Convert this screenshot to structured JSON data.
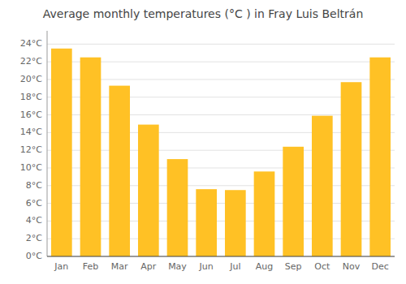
{
  "chart_data": {
    "type": "bar",
    "title": "Average monthly temperatures (°C ) in Fray Luis Beltrán",
    "categories": [
      "Jan",
      "Feb",
      "Mar",
      "Apr",
      "May",
      "Jun",
      "Jul",
      "Aug",
      "Sep",
      "Oct",
      "Nov",
      "Dec"
    ],
    "values": [
      23.5,
      22.5,
      19.3,
      14.9,
      11.0,
      7.6,
      7.5,
      9.6,
      12.4,
      15.9,
      19.7,
      22.5
    ],
    "color": "#FFC125",
    "ylim": [
      0,
      25.5
    ],
    "yticks": [
      {
        "value": 0,
        "label": "0°C"
      },
      {
        "value": 2,
        "label": "2°C"
      },
      {
        "value": 4,
        "label": "4°C"
      },
      {
        "value": 6,
        "label": "6°C"
      },
      {
        "value": 8,
        "label": "8°C"
      },
      {
        "value": 10,
        "label": "10°C"
      },
      {
        "value": 12,
        "label": "12°C"
      },
      {
        "value": 14,
        "label": "14°C"
      },
      {
        "value": 16,
        "label": "16°C"
      },
      {
        "value": 18,
        "label": "18°C"
      },
      {
        "value": 20,
        "label": "20°C"
      },
      {
        "value": 22,
        "label": "22°C"
      },
      {
        "value": 24,
        "label": "24°C"
      }
    ],
    "grid": true
  }
}
